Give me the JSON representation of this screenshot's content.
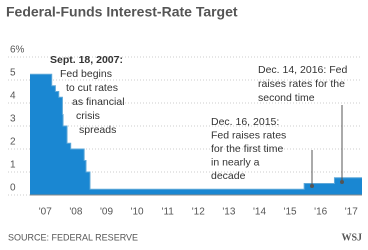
{
  "chart_data": {
    "type": "step-area",
    "title": "Federal-Funds Interest-Rate Target",
    "x": [
      2007.0,
      2007.71,
      2007.83,
      2007.94,
      2008.06,
      2008.08,
      2008.21,
      2008.33,
      2008.77,
      2008.83,
      2008.96,
      2015.96,
      2016.95,
      2017.85
    ],
    "values": [
      5.25,
      4.75,
      4.5,
      4.25,
      3.5,
      3.0,
      2.25,
      2.0,
      1.5,
      1.0,
      0.25,
      0.5,
      0.75,
      0.75
    ],
    "color": "#1a87d2",
    "line_color": "#5fa8d8",
    "xlim": [
      2007,
      2017.85
    ],
    "xticks": [
      {
        "value": 2007.5,
        "label": "'07"
      },
      {
        "value": 2008.5,
        "label": "'08"
      },
      {
        "value": 2009.5,
        "label": "'09"
      },
      {
        "value": 2010.5,
        "label": "'10"
      },
      {
        "value": 2011.5,
        "label": "'11"
      },
      {
        "value": 2012.5,
        "label": "'12"
      },
      {
        "value": 2013.5,
        "label": "'13"
      },
      {
        "value": 2014.5,
        "label": "'14"
      },
      {
        "value": 2015.5,
        "label": "'15"
      },
      {
        "value": 2016.5,
        "label": "'16"
      },
      {
        "value": 2017.5,
        "label": "'17"
      }
    ],
    "ylim": [
      0,
      6
    ],
    "yticks": [
      0,
      1,
      2,
      3,
      4,
      5,
      {
        "value": 6,
        "label": "6%"
      }
    ],
    "grid": true,
    "annotations": [
      {
        "lines": [
          "Sept. 18, 2007:",
          "Fed begins",
          "to cut rates",
          "as financial",
          "crisis",
          "spreads"
        ]
      },
      {
        "lines": [
          "Dec. 16, 2015:",
          "Fed raises rates",
          "for the first time",
          "in nearly a",
          "decade"
        ]
      },
      {
        "lines": [
          "Dec. 14, 2016: Fed",
          "raises rates for the",
          "second time"
        ]
      }
    ],
    "source": "SOURCE: FEDERAL RESERVE",
    "credit": "WSJ"
  }
}
